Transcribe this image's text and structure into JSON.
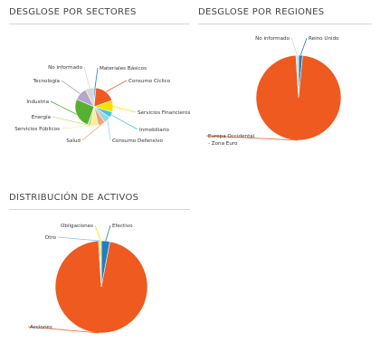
{
  "charts": [
    {
      "title": "DESGLOSE POR SECTORES",
      "chart_data": {
        "type": "pie",
        "slices": [
          {
            "label": "Materiales Básicos",
            "value": 1.5,
            "color": "#1F7FC0"
          },
          {
            "label": "Consumo Cíclico",
            "value": 18,
            "color": "#EE5A1F"
          },
          {
            "label": "Servicios Financieros",
            "value": 10,
            "color": "#F5E200"
          },
          {
            "label": "Inmobiliario",
            "value": 5,
            "color": "#48C6D8"
          },
          {
            "label": "Consumo Defensivo",
            "value": 6,
            "color": "#9FD3E7"
          },
          {
            "label": "Salud",
            "value": 6,
            "color": "#F3A372"
          },
          {
            "label": "Servicios Públicos",
            "value": 6,
            "color": "#F8EE99"
          },
          {
            "label": "Energía",
            "value": 3,
            "color": "#BDE08E"
          },
          {
            "label": "Industria",
            "value": 26,
            "color": "#58B030"
          },
          {
            "label": "Tecnología",
            "value": 11,
            "color": "#B6A5CC"
          },
          {
            "label": "No informado",
            "value": 7.5,
            "color": "#D7D7D7"
          }
        ]
      }
    },
    {
      "title": "DESGLOSE POR REGIONES",
      "chart_data": {
        "type": "pie",
        "slices": [
          {
            "label": "Reino Unido",
            "value": 1.5,
            "color": "#1F7FC0"
          },
          {
            "label": "Europa Occidental - Zona Euro",
            "value": 97.5,
            "color": "#EE5A1F"
          },
          {
            "label": "No informado",
            "value": 1.0,
            "color": "#D7D7D7"
          }
        ]
      }
    },
    {
      "title": "DISTRIBUCIÓN DE ACTIVOS",
      "chart_data": {
        "type": "pie",
        "slices": [
          {
            "label": "Efectivo",
            "value": 3,
            "color": "#1F7FC0"
          },
          {
            "label": "Acciones",
            "value": 96,
            "color": "#EE5A1F"
          },
          {
            "label": "Otro",
            "value": 0.5,
            "color": "#8FC7E8"
          },
          {
            "label": "Obligaciones",
            "value": 0.5,
            "color": "#F5E200"
          }
        ]
      }
    }
  ]
}
